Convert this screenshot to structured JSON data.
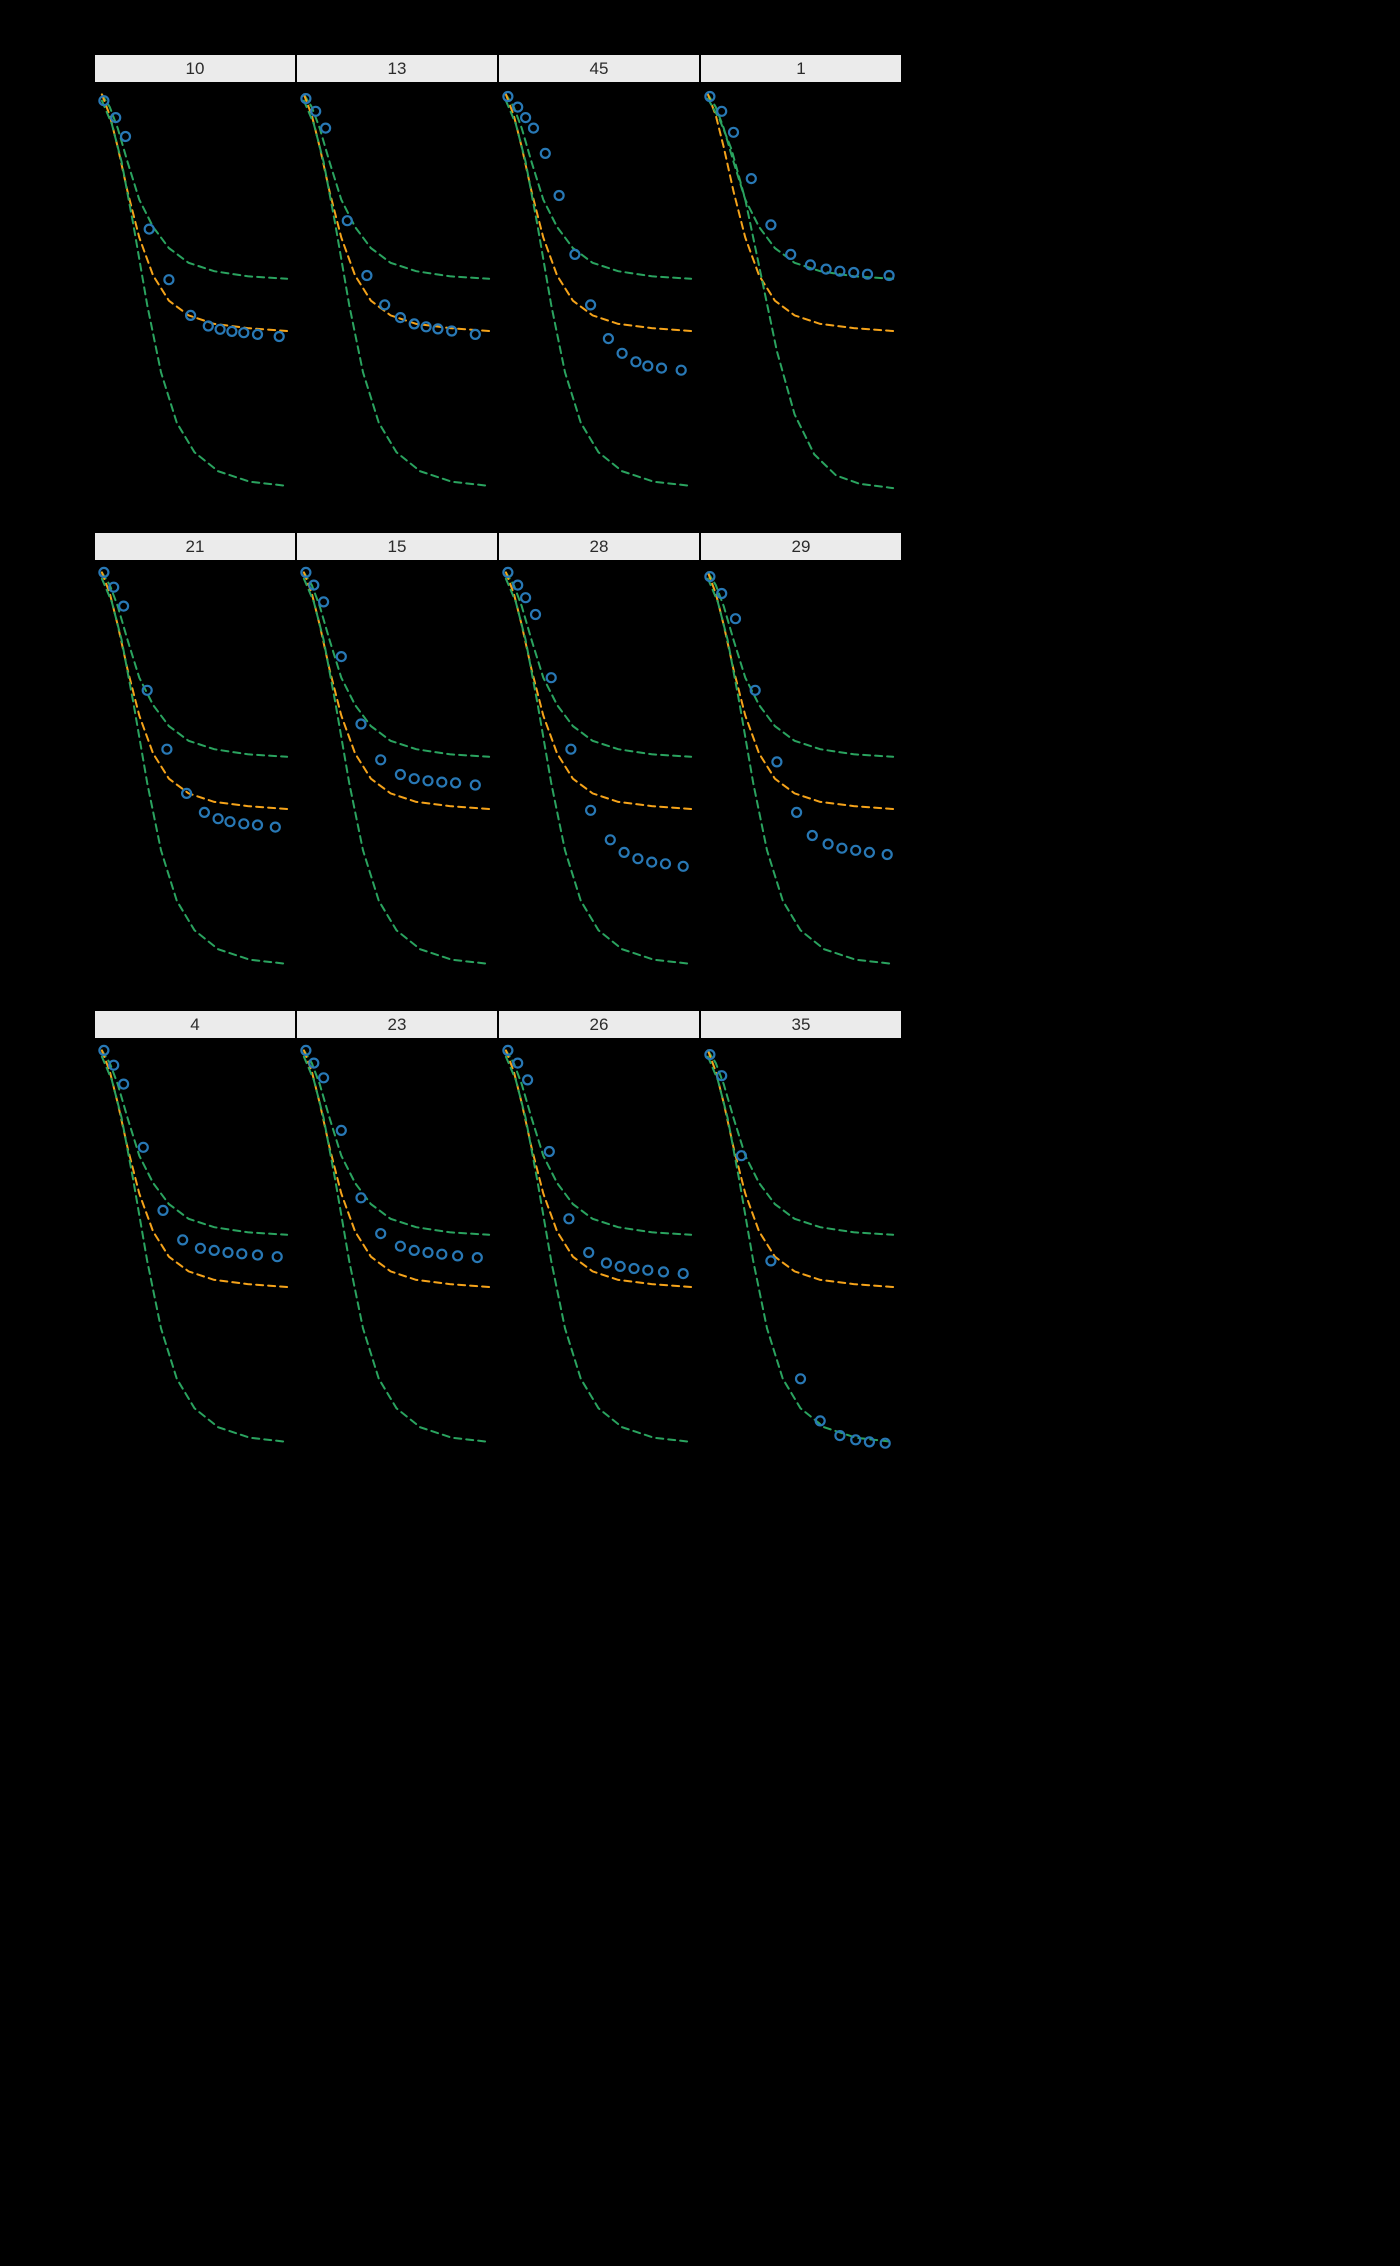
{
  "page": {
    "background": "#000000",
    "title": ""
  },
  "chart_data": {
    "type": "line",
    "description": "Faceted grid (3 rows x 4 columns) of individual profiles: dashed green upper and lower prediction-interval curves, dashed orange median curve, and open blue circle observation points. No axis tick labels are visible against the black background.",
    "coordinates_note": "All point coordinates are normalized panel fractions: x from 0 (left) to 1 (right), y from 0 (top) to 1 (bottom), estimated from the pixels.",
    "layout": {
      "rows": 3,
      "columns": 4,
      "strip_position": "top",
      "axes_visible": false,
      "legend": "none",
      "grid": "off"
    },
    "colors": {
      "interval_curves": "#2aa35f",
      "median_curve": "#f5a31a",
      "points": "#2878b5",
      "strip_bg": "#ebebeb",
      "strip_text": "#2b2b2b",
      "background": "#000000"
    },
    "facet_labels": [
      "10",
      "13",
      "45",
      "1",
      "21",
      "15",
      "28",
      "29",
      "4",
      "23",
      "26",
      "35"
    ],
    "curves_template": {
      "upper": [
        [
          0.03,
          0.02
        ],
        [
          0.07,
          0.05
        ],
        [
          0.11,
          0.1
        ],
        [
          0.16,
          0.18
        ],
        [
          0.22,
          0.27
        ],
        [
          0.29,
          0.335
        ],
        [
          0.37,
          0.385
        ],
        [
          0.47,
          0.42
        ],
        [
          0.6,
          0.44
        ],
        [
          0.77,
          0.452
        ],
        [
          0.97,
          0.458
        ]
      ],
      "median": [
        [
          0.03,
          0.02
        ],
        [
          0.07,
          0.07
        ],
        [
          0.11,
          0.145
        ],
        [
          0.16,
          0.25
        ],
        [
          0.22,
          0.36
        ],
        [
          0.29,
          0.45
        ],
        [
          0.37,
          0.51
        ],
        [
          0.47,
          0.545
        ],
        [
          0.6,
          0.565
        ],
        [
          0.77,
          0.575
        ],
        [
          0.97,
          0.582
        ]
      ],
      "lower": [
        [
          0.03,
          0.035
        ],
        [
          0.08,
          0.09
        ],
        [
          0.13,
          0.18
        ],
        [
          0.19,
          0.33
        ],
        [
          0.26,
          0.52
        ],
        [
          0.33,
          0.68
        ],
        [
          0.41,
          0.8
        ],
        [
          0.5,
          0.87
        ],
        [
          0.62,
          0.915
        ],
        [
          0.78,
          0.94
        ],
        [
          0.97,
          0.95
        ]
      ]
    },
    "facets": [
      {
        "label": "10",
        "obs": [
          [
            0.04,
            0.035
          ],
          [
            0.1,
            0.075
          ],
          [
            0.15,
            0.12
          ],
          [
            0.27,
            0.34
          ],
          [
            0.37,
            0.46
          ],
          [
            0.48,
            0.545
          ],
          [
            0.57,
            0.57
          ],
          [
            0.63,
            0.578
          ],
          [
            0.69,
            0.583
          ],
          [
            0.75,
            0.586
          ],
          [
            0.82,
            0.59
          ],
          [
            0.93,
            0.595
          ]
        ]
      },
      {
        "label": "13",
        "obs": [
          [
            0.04,
            0.03
          ],
          [
            0.09,
            0.06
          ],
          [
            0.14,
            0.1
          ],
          [
            0.25,
            0.32
          ],
          [
            0.35,
            0.45
          ],
          [
            0.44,
            0.52
          ],
          [
            0.52,
            0.55
          ],
          [
            0.59,
            0.565
          ],
          [
            0.65,
            0.572
          ],
          [
            0.71,
            0.577
          ],
          [
            0.78,
            0.582
          ],
          [
            0.9,
            0.59
          ]
        ]
      },
      {
        "label": "45",
        "obs": [
          [
            0.04,
            0.025
          ],
          [
            0.09,
            0.05
          ],
          [
            0.13,
            0.075
          ],
          [
            0.17,
            0.1
          ],
          [
            0.23,
            0.16
          ],
          [
            0.3,
            0.26
          ],
          [
            0.38,
            0.4
          ],
          [
            0.46,
            0.52
          ],
          [
            0.55,
            0.6
          ],
          [
            0.62,
            0.635
          ],
          [
            0.69,
            0.655
          ],
          [
            0.75,
            0.665
          ],
          [
            0.82,
            0.67
          ],
          [
            0.92,
            0.675
          ]
        ]
      },
      {
        "label": "1",
        "obs": [
          [
            0.04,
            0.025
          ],
          [
            0.1,
            0.06
          ],
          [
            0.16,
            0.11
          ],
          [
            0.25,
            0.22
          ],
          [
            0.35,
            0.33
          ],
          [
            0.45,
            0.4
          ],
          [
            0.55,
            0.425
          ],
          [
            0.63,
            0.435
          ],
          [
            0.7,
            0.44
          ],
          [
            0.77,
            0.443
          ],
          [
            0.84,
            0.447
          ],
          [
            0.95,
            0.45
          ]
        ],
        "lower": [
          [
            0.03,
            0.03
          ],
          [
            0.09,
            0.08
          ],
          [
            0.15,
            0.15
          ],
          [
            0.22,
            0.27
          ],
          [
            0.3,
            0.45
          ],
          [
            0.38,
            0.63
          ],
          [
            0.47,
            0.78
          ],
          [
            0.57,
            0.875
          ],
          [
            0.68,
            0.925
          ],
          [
            0.8,
            0.945
          ],
          [
            0.97,
            0.955
          ]
        ]
      },
      {
        "label": "21",
        "obs": [
          [
            0.04,
            0.02
          ],
          [
            0.09,
            0.055
          ],
          [
            0.14,
            0.1
          ],
          [
            0.26,
            0.3
          ],
          [
            0.36,
            0.44
          ],
          [
            0.46,
            0.545
          ],
          [
            0.55,
            0.59
          ],
          [
            0.62,
            0.605
          ],
          [
            0.68,
            0.612
          ],
          [
            0.75,
            0.617
          ],
          [
            0.82,
            0.62
          ],
          [
            0.91,
            0.625
          ]
        ]
      },
      {
        "label": "15",
        "obs": [
          [
            0.04,
            0.02
          ],
          [
            0.08,
            0.05
          ],
          [
            0.13,
            0.09
          ],
          [
            0.22,
            0.22
          ],
          [
            0.32,
            0.38
          ],
          [
            0.42,
            0.465
          ],
          [
            0.52,
            0.5
          ],
          [
            0.59,
            0.51
          ],
          [
            0.66,
            0.515
          ],
          [
            0.73,
            0.518
          ],
          [
            0.8,
            0.52
          ],
          [
            0.9,
            0.525
          ]
        ]
      },
      {
        "label": "28",
        "obs": [
          [
            0.04,
            0.02
          ],
          [
            0.09,
            0.05
          ],
          [
            0.13,
            0.08
          ],
          [
            0.18,
            0.12
          ],
          [
            0.26,
            0.27
          ],
          [
            0.36,
            0.44
          ],
          [
            0.46,
            0.585
          ],
          [
            0.56,
            0.655
          ],
          [
            0.63,
            0.685
          ],
          [
            0.7,
            0.7
          ],
          [
            0.77,
            0.708
          ],
          [
            0.84,
            0.712
          ],
          [
            0.93,
            0.718
          ]
        ]
      },
      {
        "label": "29",
        "obs": [
          [
            0.04,
            0.03
          ],
          [
            0.1,
            0.07
          ],
          [
            0.17,
            0.13
          ],
          [
            0.27,
            0.3
          ],
          [
            0.38,
            0.47
          ],
          [
            0.48,
            0.59
          ],
          [
            0.56,
            0.645
          ],
          [
            0.64,
            0.665
          ],
          [
            0.71,
            0.675
          ],
          [
            0.78,
            0.68
          ],
          [
            0.85,
            0.685
          ],
          [
            0.94,
            0.69
          ]
        ]
      },
      {
        "label": "4",
        "obs": [
          [
            0.04,
            0.02
          ],
          [
            0.09,
            0.055
          ],
          [
            0.14,
            0.1
          ],
          [
            0.24,
            0.25
          ],
          [
            0.34,
            0.4
          ],
          [
            0.44,
            0.47
          ],
          [
            0.53,
            0.49
          ],
          [
            0.6,
            0.495
          ],
          [
            0.67,
            0.5
          ],
          [
            0.74,
            0.503
          ],
          [
            0.82,
            0.506
          ],
          [
            0.92,
            0.51
          ]
        ]
      },
      {
        "label": "23",
        "obs": [
          [
            0.04,
            0.02
          ],
          [
            0.08,
            0.05
          ],
          [
            0.13,
            0.085
          ],
          [
            0.22,
            0.21
          ],
          [
            0.32,
            0.37
          ],
          [
            0.42,
            0.455
          ],
          [
            0.52,
            0.485
          ],
          [
            0.59,
            0.495
          ],
          [
            0.66,
            0.5
          ],
          [
            0.73,
            0.504
          ],
          [
            0.81,
            0.508
          ],
          [
            0.91,
            0.512
          ]
        ]
      },
      {
        "label": "26",
        "obs": [
          [
            0.04,
            0.02
          ],
          [
            0.09,
            0.05
          ],
          [
            0.14,
            0.09
          ],
          [
            0.25,
            0.26
          ],
          [
            0.35,
            0.42
          ],
          [
            0.45,
            0.5
          ],
          [
            0.54,
            0.525
          ],
          [
            0.61,
            0.533
          ],
          [
            0.68,
            0.538
          ],
          [
            0.75,
            0.542
          ],
          [
            0.83,
            0.546
          ],
          [
            0.93,
            0.55
          ]
        ]
      },
      {
        "label": "35",
        "obs": [
          [
            0.04,
            0.03
          ],
          [
            0.1,
            0.08
          ],
          [
            0.2,
            0.27
          ],
          [
            0.35,
            0.52
          ],
          [
            0.5,
            0.8
          ],
          [
            0.6,
            0.9
          ],
          [
            0.7,
            0.935
          ],
          [
            0.78,
            0.945
          ],
          [
            0.85,
            0.95
          ],
          [
            0.93,
            0.953
          ]
        ]
      }
    ]
  }
}
